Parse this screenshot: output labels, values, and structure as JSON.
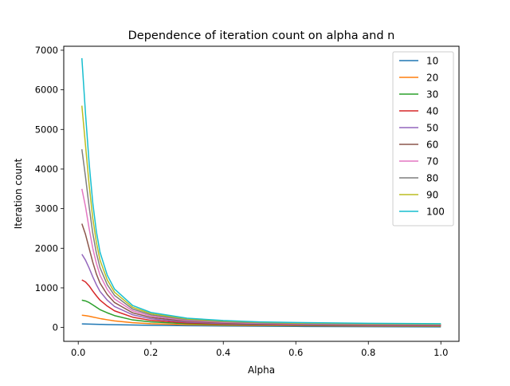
{
  "chart_data": {
    "type": "line",
    "title": "Dependence of iteration count on alpha and n",
    "xlabel": "Alpha",
    "ylabel": "Iteration count",
    "xlim": [
      -0.04,
      1.05
    ],
    "ylim": [
      -350,
      7100
    ],
    "xticks": [
      0.0,
      0.2,
      0.4,
      0.6,
      0.8,
      1.0
    ],
    "xtick_labels": [
      "0.0",
      "0.2",
      "0.4",
      "0.6",
      "0.8",
      "1.0"
    ],
    "yticks": [
      0,
      1000,
      2000,
      3000,
      4000,
      5000,
      6000,
      7000
    ],
    "ytick_labels": [
      "0",
      "1000",
      "2000",
      "3000",
      "4000",
      "5000",
      "6000",
      "7000"
    ],
    "grid": false,
    "legend_position": "top-right",
    "x": [
      0.01,
      0.02,
      0.03,
      0.04,
      0.05,
      0.06,
      0.08,
      0.1,
      0.15,
      0.2,
      0.3,
      0.4,
      0.5,
      0.6,
      0.8,
      1.0
    ],
    "series": [
      {
        "name": "10",
        "color": "#1f77b4",
        "values": [
          90,
          88,
          85,
          82,
          80,
          78,
          74,
          70,
          62,
          55,
          45,
          38,
          32,
          27,
          20,
          15
        ]
      },
      {
        "name": "20",
        "color": "#ff7f0e",
        "values": [
          310,
          300,
          285,
          265,
          245,
          225,
          195,
          165,
          120,
          95,
          70,
          58,
          50,
          45,
          38,
          32
        ]
      },
      {
        "name": "30",
        "color": "#2ca02c",
        "values": [
          690,
          670,
          630,
          570,
          510,
          450,
          370,
          300,
          190,
          140,
          95,
          75,
          62,
          55,
          47,
          42
        ]
      },
      {
        "name": "40",
        "color": "#d62728",
        "values": [
          1200,
          1150,
          1050,
          920,
          800,
          690,
          540,
          420,
          260,
          180,
          115,
          88,
          72,
          63,
          54,
          48
        ]
      },
      {
        "name": "50",
        "color": "#9467bd",
        "values": [
          1850,
          1700,
          1500,
          1280,
          1080,
          910,
          690,
          530,
          320,
          220,
          135,
          100,
          82,
          72,
          61,
          55
        ]
      },
      {
        "name": "60",
        "color": "#8c564b",
        "values": [
          2620,
          2350,
          2000,
          1650,
          1350,
          1120,
          830,
          630,
          370,
          255,
          155,
          115,
          94,
          82,
          70,
          62
        ]
      },
      {
        "name": "70",
        "color": "#e377c2",
        "values": [
          3500,
          3050,
          2500,
          2000,
          1620,
          1320,
          960,
          720,
          420,
          290,
          175,
          130,
          106,
          93,
          78,
          70
        ]
      },
      {
        "name": "80",
        "color": "#7f7f7f",
        "values": [
          4500,
          3800,
          3050,
          2380,
          1880,
          1510,
          1080,
          810,
          465,
          320,
          195,
          145,
          118,
          103,
          87,
          78
        ]
      },
      {
        "name": "90",
        "color": "#bcbd22",
        "values": [
          5600,
          4600,
          3600,
          2760,
          2150,
          1700,
          1200,
          890,
          510,
          350,
          215,
          160,
          130,
          114,
          96,
          86
        ]
      },
      {
        "name": "100",
        "color": "#17becf",
        "values": [
          6800,
          5400,
          4150,
          3150,
          2420,
          1900,
          1320,
          970,
          555,
          380,
          235,
          175,
          142,
          125,
          105,
          95
        ]
      }
    ]
  }
}
